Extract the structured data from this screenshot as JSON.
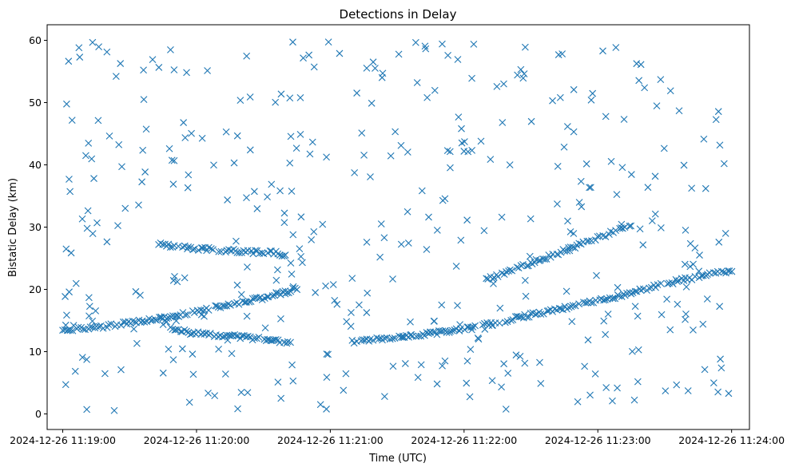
{
  "chart_data": {
    "type": "scatter",
    "title": "Detections in Delay",
    "xlabel": "Time (UTC)",
    "ylabel": "Bistatic Delay (km)",
    "marker": "x",
    "color": "#1f77b4",
    "xlim": [
      "2024-12-26 11:18:53",
      "2024-12-26 11:24:08"
    ],
    "ylim": [
      -2.5,
      62.5
    ],
    "xticks": [
      "2024-12-26 11:19:00",
      "2024-12-26 11:20:00",
      "2024-12-26 11:21:00",
      "2024-12-26 11:22:00",
      "2024-12-26 11:23:00",
      "2024-12-26 11:24:00"
    ],
    "yticks": [
      0,
      10,
      20,
      30,
      40,
      50,
      60
    ],
    "grid": false,
    "legend": "none",
    "tracks": [
      {
        "points": [
          [
            "2024-12-26 11:19:00",
            13.4
          ],
          [
            "2024-12-26 11:19:15",
            13.9
          ],
          [
            "2024-12-26 11:19:30",
            14.6
          ],
          [
            "2024-12-26 11:19:45",
            15.4
          ],
          [
            "2024-12-26 11:19:55",
            16.1
          ],
          [
            "2024-12-26 11:20:10",
            17.3
          ],
          [
            "2024-12-26 11:20:30",
            18.6
          ],
          [
            "2024-12-26 11:20:45",
            20.1
          ]
        ]
      },
      {
        "points": [
          [
            "2024-12-26 11:19:43",
            27.2
          ],
          [
            "2024-12-26 11:20:00",
            26.6
          ],
          [
            "2024-12-26 11:20:20",
            26.1
          ],
          [
            "2024-12-26 11:20:35",
            25.9
          ],
          [
            "2024-12-26 11:20:40",
            25.5
          ]
        ]
      },
      {
        "points": [
          [
            "2024-12-26 11:19:43",
            15.8
          ],
          [
            "2024-12-26 11:19:50",
            13.5
          ],
          [
            "2024-12-26 11:20:00",
            12.9
          ],
          [
            "2024-12-26 11:20:15",
            12.5
          ],
          [
            "2024-12-26 11:20:30",
            12.0
          ],
          [
            "2024-12-26 11:20:42",
            11.4
          ]
        ]
      },
      {
        "points": [
          [
            "2024-12-26 11:21:10",
            11.6
          ],
          [
            "2024-12-26 11:21:30",
            12.2
          ],
          [
            "2024-12-26 11:21:50",
            13.1
          ],
          [
            "2024-12-26 11:22:10",
            14.3
          ],
          [
            "2024-12-26 11:22:30",
            15.9
          ],
          [
            "2024-12-26 11:22:50",
            17.4
          ],
          [
            "2024-12-26 11:23:10",
            19.0
          ],
          [
            "2024-12-26 11:23:30",
            20.9
          ],
          [
            "2024-12-26 11:23:50",
            22.4
          ],
          [
            "2024-12-26 11:24:00",
            23.1
          ]
        ]
      },
      {
        "points": [
          [
            "2024-12-26 11:22:10",
            21.5
          ],
          [
            "2024-12-26 11:22:30",
            24.2
          ],
          [
            "2024-12-26 11:22:50",
            26.9
          ],
          [
            "2024-12-26 11:23:10",
            29.6
          ],
          [
            "2024-12-26 11:23:15",
            30.4
          ]
        ]
      }
    ],
    "scattered_detections": "approximately 400 detections spread uniformly over delays 0–60 km across the whole time range"
  }
}
